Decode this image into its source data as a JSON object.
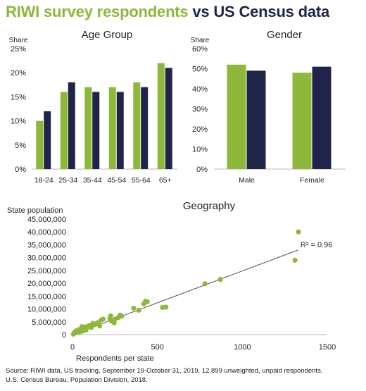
{
  "title": {
    "part1": "RIWI survey respondents",
    "part2": "vs US Census data"
  },
  "colors": {
    "riwi": "#8db83a",
    "census": "#1f2448",
    "axis": "#b8b8b8",
    "trend": "#555555"
  },
  "chart_data": [
    {
      "type": "bar",
      "title": "Age Group",
      "ylabel": "Share",
      "categories": [
        "18-24",
        "25-34",
        "35-44",
        "45-54",
        "55-64",
        "65+"
      ],
      "series": [
        {
          "values": [
            10,
            16,
            17,
            17,
            18,
            22
          ]
        },
        {
          "values": [
            12,
            18,
            16,
            16,
            17,
            21
          ]
        }
      ],
      "ylim": [
        0,
        25
      ],
      "yticks": [
        0,
        5,
        10,
        15,
        20,
        25
      ],
      "ytick_suffix": "%",
      "grid": false
    },
    {
      "type": "bar",
      "title": "Gender",
      "ylabel": "Share",
      "categories": [
        "Male",
        "Female"
      ],
      "series": [
        {
          "values": [
            52,
            48
          ]
        },
        {
          "values": [
            49,
            51
          ]
        }
      ],
      "ylim": [
        0,
        60
      ],
      "yticks": [
        0,
        10,
        20,
        30,
        40,
        50,
        60
      ],
      "ytick_suffix": "%",
      "grid": false
    },
    {
      "type": "scatter",
      "title": "Geography",
      "xlabel": "Respondents per state",
      "ylabel": "State population",
      "xlim": [
        0,
        1500
      ],
      "ylim": [
        0,
        45000000
      ],
      "xticks": [
        0,
        500,
        1000,
        1500
      ],
      "yticks": [
        0,
        5000000,
        10000000,
        15000000,
        20000000,
        25000000,
        30000000,
        35000000,
        40000000,
        45000000
      ],
      "ytick_labels": [
        "0",
        "5,000,000",
        "10,000,000",
        "15,000,000",
        "20,000,000",
        "25,000,000",
        "30,000,000",
        "35,000,000",
        "40,000,000",
        "45,000,000"
      ],
      "annotation": {
        "text": "R² = 0.96",
        "x": 1350,
        "y": 34000000
      },
      "trendline": {
        "x": [
          0,
          1330
        ],
        "y": [
          0,
          33000000
        ]
      },
      "points": [
        [
          1330,
          40000000
        ],
        [
          1310,
          29000000
        ],
        [
          870,
          21500000
        ],
        [
          780,
          19800000
        ],
        [
          550,
          10700000
        ],
        [
          530,
          10600000
        ],
        [
          440,
          12800000
        ],
        [
          430,
          13000000
        ],
        [
          420,
          12000000
        ],
        [
          390,
          9500000
        ],
        [
          360,
          10300000
        ],
        [
          290,
          7200000
        ],
        [
          280,
          7600000
        ],
        [
          270,
          6700000
        ],
        [
          250,
          6000000
        ],
        [
          245,
          4600000
        ],
        [
          230,
          5300000
        ],
        [
          225,
          7300000
        ],
        [
          220,
          6300000
        ],
        [
          180,
          6000000
        ],
        [
          170,
          5700000
        ],
        [
          160,
          3400000
        ],
        [
          150,
          4700000
        ],
        [
          140,
          4200000
        ],
        [
          130,
          3900000
        ],
        [
          120,
          4400000
        ],
        [
          110,
          2800000
        ],
        [
          100,
          3500000
        ],
        [
          90,
          3200000
        ],
        [
          80,
          1800000
        ],
        [
          75,
          3000000
        ],
        [
          70,
          2100000
        ],
        [
          60,
          1400000
        ],
        [
          55,
          3100000
        ],
        [
          50,
          2000000
        ],
        [
          45,
          1300000
        ],
        [
          40,
          1000000
        ],
        [
          35,
          1900000
        ],
        [
          30,
          900000
        ],
        [
          25,
          1600000
        ],
        [
          20,
          700000
        ],
        [
          15,
          1100000
        ],
        [
          10,
          600000
        ],
        [
          5,
          200000
        ]
      ]
    }
  ],
  "source": {
    "line1": "Source: RIWI data, US tracking, September 19-October 31, 2019, 12,899 unweighted, unpaid respondents.",
    "line2": "U.S. Census Bureau, Population Division, 2018."
  }
}
